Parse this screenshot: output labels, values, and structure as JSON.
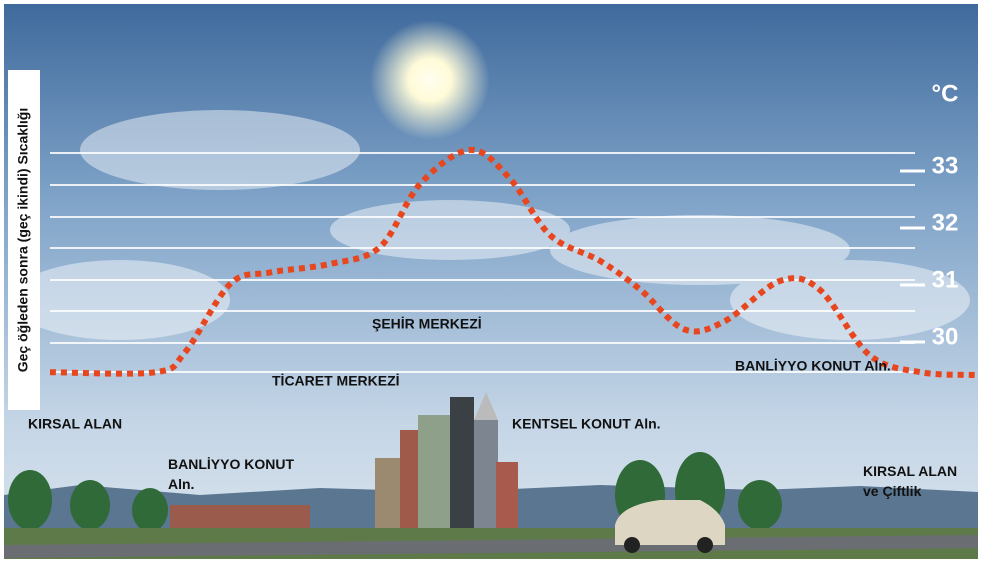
{
  "chart_data": {
    "type": "line",
    "ylabel": "Geç öğleden sonra (geç ikindi) Sıcaklığı",
    "y_unit": "°C",
    "x": [
      0,
      11.4,
      14.6,
      19.5,
      23.8,
      30.3,
      35.7,
      40.0,
      45.4,
      49.7,
      54.1,
      59.5,
      63.8,
      68.6,
      73.0,
      78.9,
      83.2,
      88.6,
      94.1,
      100
    ],
    "series": [
      {
        "name": null,
        "color": "#e8461e",
        "values": [
          29.4,
          29.4,
          29.75,
          30.95,
          31.15,
          31.3,
          31.6,
          32.7,
          33.3,
          32.8,
          31.8,
          31.35,
          30.85,
          30.15,
          30.3,
          31.0,
          30.85,
          29.7,
          29.4,
          29.35
        ]
      }
    ],
    "xlim": [
      0,
      100
    ],
    "ylim": [
      29,
      34
    ],
    "yticks": [
      30,
      31,
      32,
      33
    ],
    "annotations": [
      "KIRSAL ALAN",
      "BANLİYYO KONUT Aln.",
      "TİCARET MERKEZİ",
      "ŞEHİR MERKEZİ",
      "KENTSEL KONUT Aln.",
      "BANLİYYO KONUT Aln.",
      "KIRSAL ALAN ve Çiftlik"
    ]
  }
}
